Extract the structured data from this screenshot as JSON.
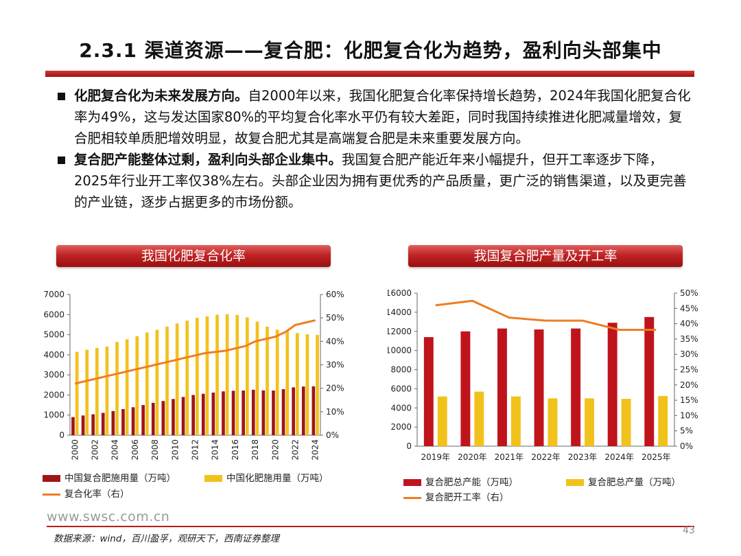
{
  "title": "2.3.1 渠道资源——复合肥：化肥复合化为趋势，盈利向头部集中",
  "bullets": [
    {
      "bold": "化肥复合化为未来发展方向。",
      "text": "自2000年以来，我国化肥复合化率保持增长趋势，2024年我国化肥复合化率为49%，这与发达国家80%的平均复合化率水平仍有较大差距，同时我国持续推进化肥减量增效，复合肥相较单质肥增效明显，故复合肥尤其是高端复合肥是未来重要发展方向。"
    },
    {
      "bold": "复合肥产能整体过剩，盈利向头部企业集中。",
      "text": "我国复合肥产能近年来小幅提升，但开工率逐步下降，2025年行业开工率仅38%左右。头部企业因为拥有更优秀的产品质量，更广泛的销售渠道，以及更完善的产业链，逐步占据更多的市场份额。"
    }
  ],
  "chart1_title": "我国化肥复合化率",
  "chart2_title": "我国复合肥产量及开工率",
  "chart_data": [
    {
      "type": "bar",
      "categories": [
        "2000",
        "2001",
        "2002",
        "2003",
        "2004",
        "2005",
        "2006",
        "2007",
        "2008",
        "2009",
        "2010",
        "2011",
        "2012",
        "2013",
        "2014",
        "2015",
        "2016",
        "2017",
        "2018",
        "2019",
        "2020",
        "2021",
        "2022",
        "2023",
        "2024"
      ],
      "x_tick_labels": [
        "2000",
        "2002",
        "2004",
        "2006",
        "2008",
        "2010",
        "2012",
        "2014",
        "2016",
        "2018",
        "2020",
        "2022",
        "2024"
      ],
      "y_ticks": [
        "0",
        "1000",
        "2000",
        "3000",
        "4000",
        "5000",
        "6000",
        "7000"
      ],
      "y2_ticks": [
        "0%",
        "10%",
        "20%",
        "30%",
        "40%",
        "50%",
        "60%"
      ],
      "ylim": [
        0,
        7000
      ],
      "y2lim": [
        0,
        0.6
      ],
      "series": [
        {
          "name": "中国复合肥施用量（万吨）",
          "kind": "bar",
          "color": "#a01518",
          "values": [
            900,
            980,
            1040,
            1110,
            1200,
            1300,
            1390,
            1500,
            1610,
            1700,
            1800,
            1900,
            2000,
            2060,
            2120,
            2180,
            2210,
            2220,
            2260,
            2230,
            2220,
            2290,
            2380,
            2420,
            2430
          ]
        },
        {
          "name": "中国化肥施用量（万吨）",
          "kind": "bar",
          "color": "#f2c21c",
          "values": [
            4150,
            4250,
            4340,
            4410,
            4640,
            4770,
            4930,
            5110,
            5240,
            5400,
            5560,
            5700,
            5840,
            5910,
            5990,
            6020,
            5980,
            5860,
            5650,
            5400,
            5250,
            5190,
            5080,
            5020,
            4990
          ]
        },
        {
          "name": "复合化率（右）",
          "kind": "line",
          "axis": "right",
          "color": "#ee7d22",
          "values": [
            0.22,
            0.23,
            0.24,
            0.25,
            0.26,
            0.27,
            0.28,
            0.29,
            0.3,
            0.31,
            0.32,
            0.33,
            0.34,
            0.35,
            0.355,
            0.36,
            0.37,
            0.38,
            0.4,
            0.41,
            0.42,
            0.44,
            0.47,
            0.48,
            0.49
          ]
        }
      ]
    },
    {
      "type": "bar",
      "categories": [
        "2019年",
        "2020年",
        "2021年",
        "2022年",
        "2023年",
        "2024年",
        "2025年"
      ],
      "y_ticks": [
        "0",
        "2000",
        "4000",
        "6000",
        "8000",
        "10000",
        "12000",
        "14000",
        "16000"
      ],
      "y2_ticks": [
        "0%",
        "5%",
        "10%",
        "15%",
        "20%",
        "25%",
        "30%",
        "35%",
        "40%",
        "45%",
        "50%"
      ],
      "ylim": [
        0,
        16000
      ],
      "y2lim": [
        0,
        0.5
      ],
      "series": [
        {
          "name": "复合肥总产能（万吨）",
          "kind": "bar",
          "color": "#c0141c",
          "values": [
            11400,
            12000,
            12300,
            12200,
            12300,
            12900,
            13500
          ]
        },
        {
          "name": "复合肥总产量（万吨）",
          "kind": "bar",
          "color": "#f2c21c",
          "values": [
            5200,
            5700,
            5200,
            5000,
            5000,
            4950,
            5250
          ]
        },
        {
          "name": "复合肥开工率（右）",
          "kind": "line",
          "axis": "right",
          "color": "#ee7d22",
          "values": [
            0.46,
            0.475,
            0.42,
            0.41,
            0.41,
            0.38,
            0.38
          ]
        }
      ]
    }
  ],
  "website": "www.swsc.com.cn",
  "source": "数据来源：wind，百川盈孚，观研天下，西南证券整理",
  "page_number": "43"
}
